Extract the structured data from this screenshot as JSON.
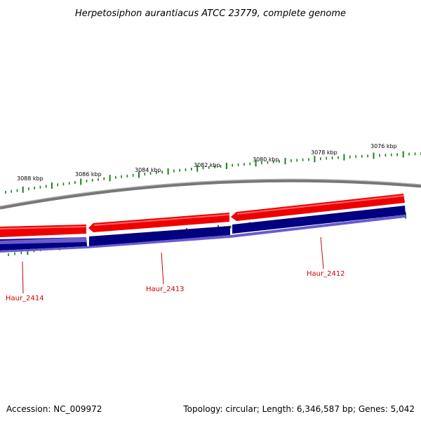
{
  "title": "Herpetosiphon aurantiacus ATCC 23779, complete genome",
  "footer": {
    "accession": "Accession: NC_009972",
    "summary": "Topology: circular; Length: 6,346,587 bp; Genes: 5,042"
  },
  "tick_labels": [
    "3088 kbp",
    "3086 kbp",
    "3084 kbp",
    "3082 kbp",
    "3080 kbp",
    "3078 kbp",
    "3076 kbp"
  ],
  "genes": [
    {
      "name": "Haur_2414"
    },
    {
      "name": "Haur_2413"
    },
    {
      "name": "Haur_2412"
    }
  ],
  "colors": {
    "backbone": "#888888",
    "forward_track": "#ee0000",
    "reverse_track": "#000080",
    "reverse_track_light": "#6a5acd",
    "ticks": "#1a7f1a",
    "gene_label": "#cc0000"
  }
}
